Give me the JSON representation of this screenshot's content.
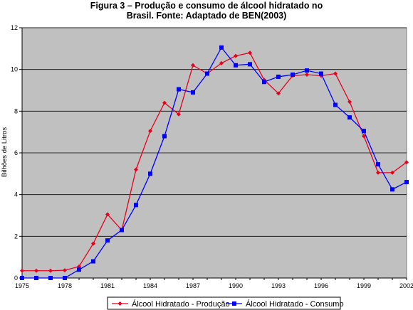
{
  "chart_data": {
    "type": "line",
    "title_line1": "Figura 3 – Produção e consumo de  álcool hidratado no",
    "title_line2": "Brasil. Fonte: Adaptado de BEN(2003)",
    "ylabel": "Bilhões de Litros",
    "xlabel": "",
    "xlim": [
      1975,
      2002
    ],
    "ylim": [
      0,
      12
    ],
    "x_ticks": [
      "1975",
      "1978",
      "1981",
      "1984",
      "1987",
      "1990",
      "1993",
      "1996",
      "1999",
      "2002"
    ],
    "y_ticks": [
      "0",
      "2",
      "4",
      "6",
      "8",
      "10",
      "12"
    ],
    "grid": true,
    "legend_position": "bottom",
    "plot_background": "#c0c0c0",
    "x": [
      1975,
      1976,
      1977,
      1978,
      1979,
      1980,
      1981,
      1982,
      1983,
      1984,
      1985,
      1986,
      1987,
      1988,
      1989,
      1990,
      1991,
      1992,
      1993,
      1994,
      1995,
      1996,
      1997,
      1998,
      1999,
      2000,
      2001,
      2002
    ],
    "series": [
      {
        "name": "Álcool Hidratado - Produção",
        "color": "#e8001c",
        "marker": "diamond",
        "values": [
          0.35,
          0.35,
          0.35,
          0.37,
          0.55,
          1.65,
          3.05,
          2.3,
          5.2,
          7.05,
          8.4,
          7.85,
          10.2,
          9.8,
          10.3,
          10.65,
          10.8,
          9.5,
          8.85,
          9.7,
          9.75,
          9.7,
          9.8,
          8.45,
          6.8,
          5.05,
          5.05,
          5.55
        ]
      },
      {
        "name": "Álcool Hidratado - Consumo",
        "color": "#0000ff",
        "marker": "square",
        "values": [
          0.0,
          0.0,
          0.0,
          0.0,
          0.4,
          0.8,
          1.8,
          2.3,
          3.5,
          5.0,
          6.8,
          9.05,
          8.9,
          9.8,
          11.05,
          10.2,
          10.25,
          9.4,
          9.65,
          9.75,
          9.95,
          9.8,
          8.3,
          7.7,
          7.05,
          5.45,
          4.25,
          4.6
        ]
      }
    ]
  }
}
